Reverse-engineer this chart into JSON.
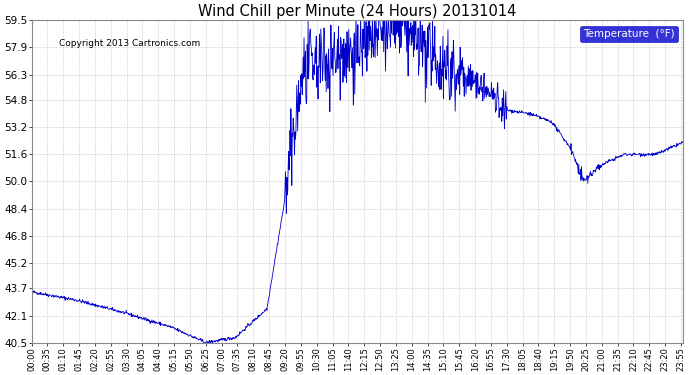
{
  "title": "Wind Chill per Minute (24 Hours) 20131014",
  "copyright": "Copyright 2013 Cartronics.com",
  "legend_label": "Temperature  (°F)",
  "line_color": "#0000cd",
  "background_color": "#ffffff",
  "plot_bg_color": "#ffffff",
  "grid_color": "#c8c8c8",
  "ylim": [
    40.5,
    59.5
  ],
  "yticks": [
    40.5,
    42.1,
    43.7,
    45.2,
    46.8,
    48.4,
    50.0,
    51.6,
    53.2,
    54.8,
    56.3,
    57.9,
    59.5
  ],
  "xlabel_fontsize": 6,
  "ylabel_fontsize": 7.5,
  "title_fontsize": 10.5,
  "copyright_fontsize": 6.5,
  "num_minutes": 1440,
  "tick_interval": 35
}
